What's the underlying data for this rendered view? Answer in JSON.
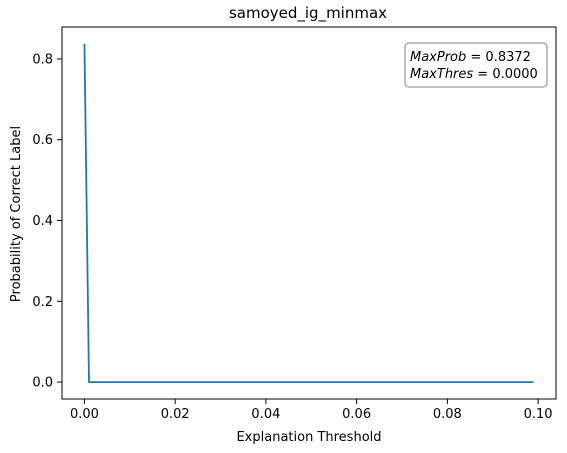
{
  "chart_data": {
    "type": "line",
    "title": "samoyed_ig_minmax",
    "xlabel": "Explanation Threshold",
    "ylabel": "Probability of Correct Label",
    "xlim": [
      -0.00495,
      0.10395
    ],
    "ylim": [
      -0.04186,
      0.87906
    ],
    "x_ticks": [
      0.0,
      0.02,
      0.04,
      0.06,
      0.08,
      0.1
    ],
    "x_tick_labels": [
      "0.00",
      "0.02",
      "0.04",
      "0.06",
      "0.08",
      "0.10"
    ],
    "y_ticks": [
      0.0,
      0.2,
      0.4,
      0.6,
      0.8
    ],
    "y_tick_labels": [
      "0.0",
      "0.2",
      "0.4",
      "0.6",
      "0.8"
    ],
    "grid": false,
    "series": [
      {
        "color": "#1f77b4",
        "x": [
          0.0,
          0.001,
          0.099
        ],
        "y": [
          0.8372,
          0.0,
          0.0
        ]
      }
    ],
    "annotation": {
      "line1_label": "MaxProb",
      "line1_value": " = 0.8372",
      "line2_label": "MaxThres",
      "line2_value": " = 0.0000"
    }
  }
}
